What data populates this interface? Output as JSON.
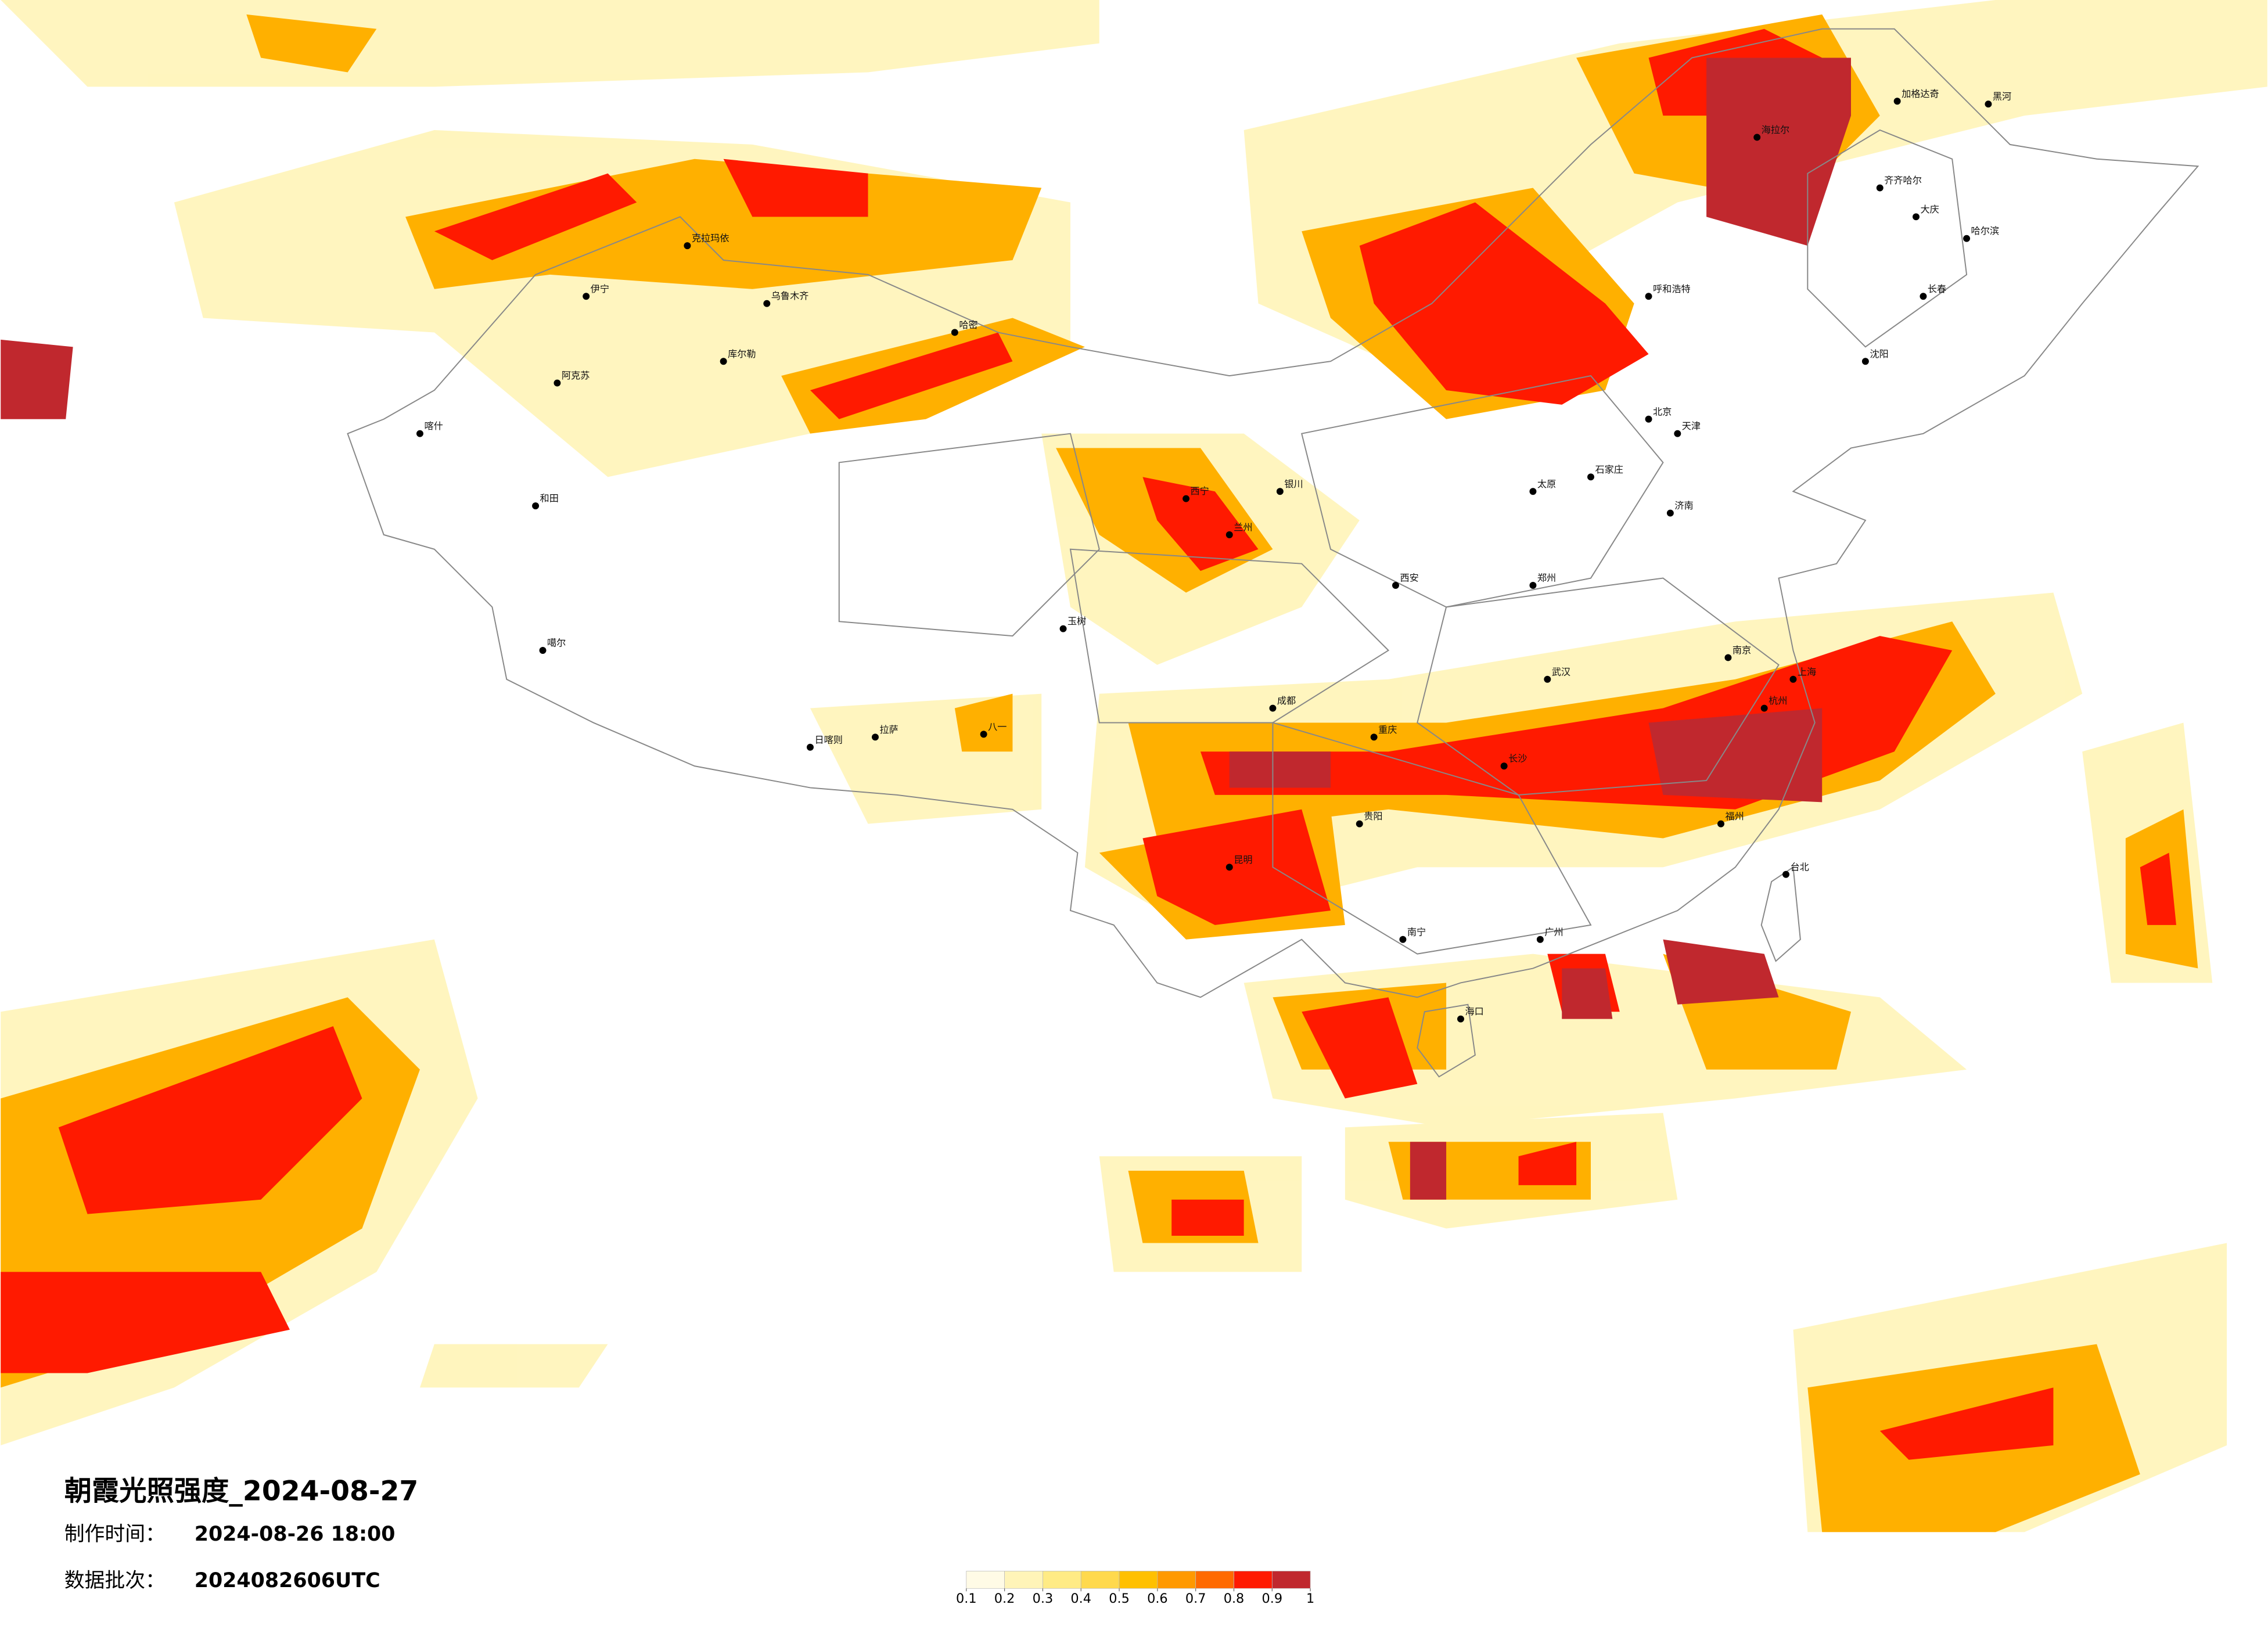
{
  "title": "朝霞光照强度_2024-08-27",
  "info": {
    "made_label": "制作时间：",
    "made_value": "2024-08-26 18:00",
    "batch_label": "数据批次：",
    "batch_value": "2024082606UTC"
  },
  "colorbar": {
    "ticks": [
      0.1,
      0.2,
      0.3,
      0.4,
      0.5,
      0.6,
      0.7,
      0.8,
      0.9,
      1
    ],
    "colors": [
      "#fffbe6",
      "#fff4b8",
      "#ffeb85",
      "#ffd94d",
      "#ffc000",
      "#ff9900",
      "#ff6a00",
      "#ff1a00",
      "#c0282e"
    ]
  },
  "cities": [
    "克拉玛依",
    "伊宁",
    "阿克苏",
    "喀什",
    "和田",
    "噶尔",
    "日喀则",
    "拉萨",
    "八一",
    "哈密",
    "乌鲁木齐",
    "库尔勒",
    "玉树",
    "西宁",
    "兰州",
    "银川",
    "北京",
    "天津",
    "石家庄",
    "济南",
    "郑州",
    "南京",
    "上海",
    "杭州",
    "武汉",
    "长沙",
    "成都",
    "重庆",
    "贵阳",
    "昆明",
    "南宁",
    "广州",
    "福州",
    "台北",
    "海口",
    "哈尔滨",
    "长春",
    "沈阳",
    "呼和浩特",
    "大庆",
    "齐齐哈尔",
    "太原",
    "西安",
    "海拉尔",
    "加格达奇",
    "黑河"
  ]
}
